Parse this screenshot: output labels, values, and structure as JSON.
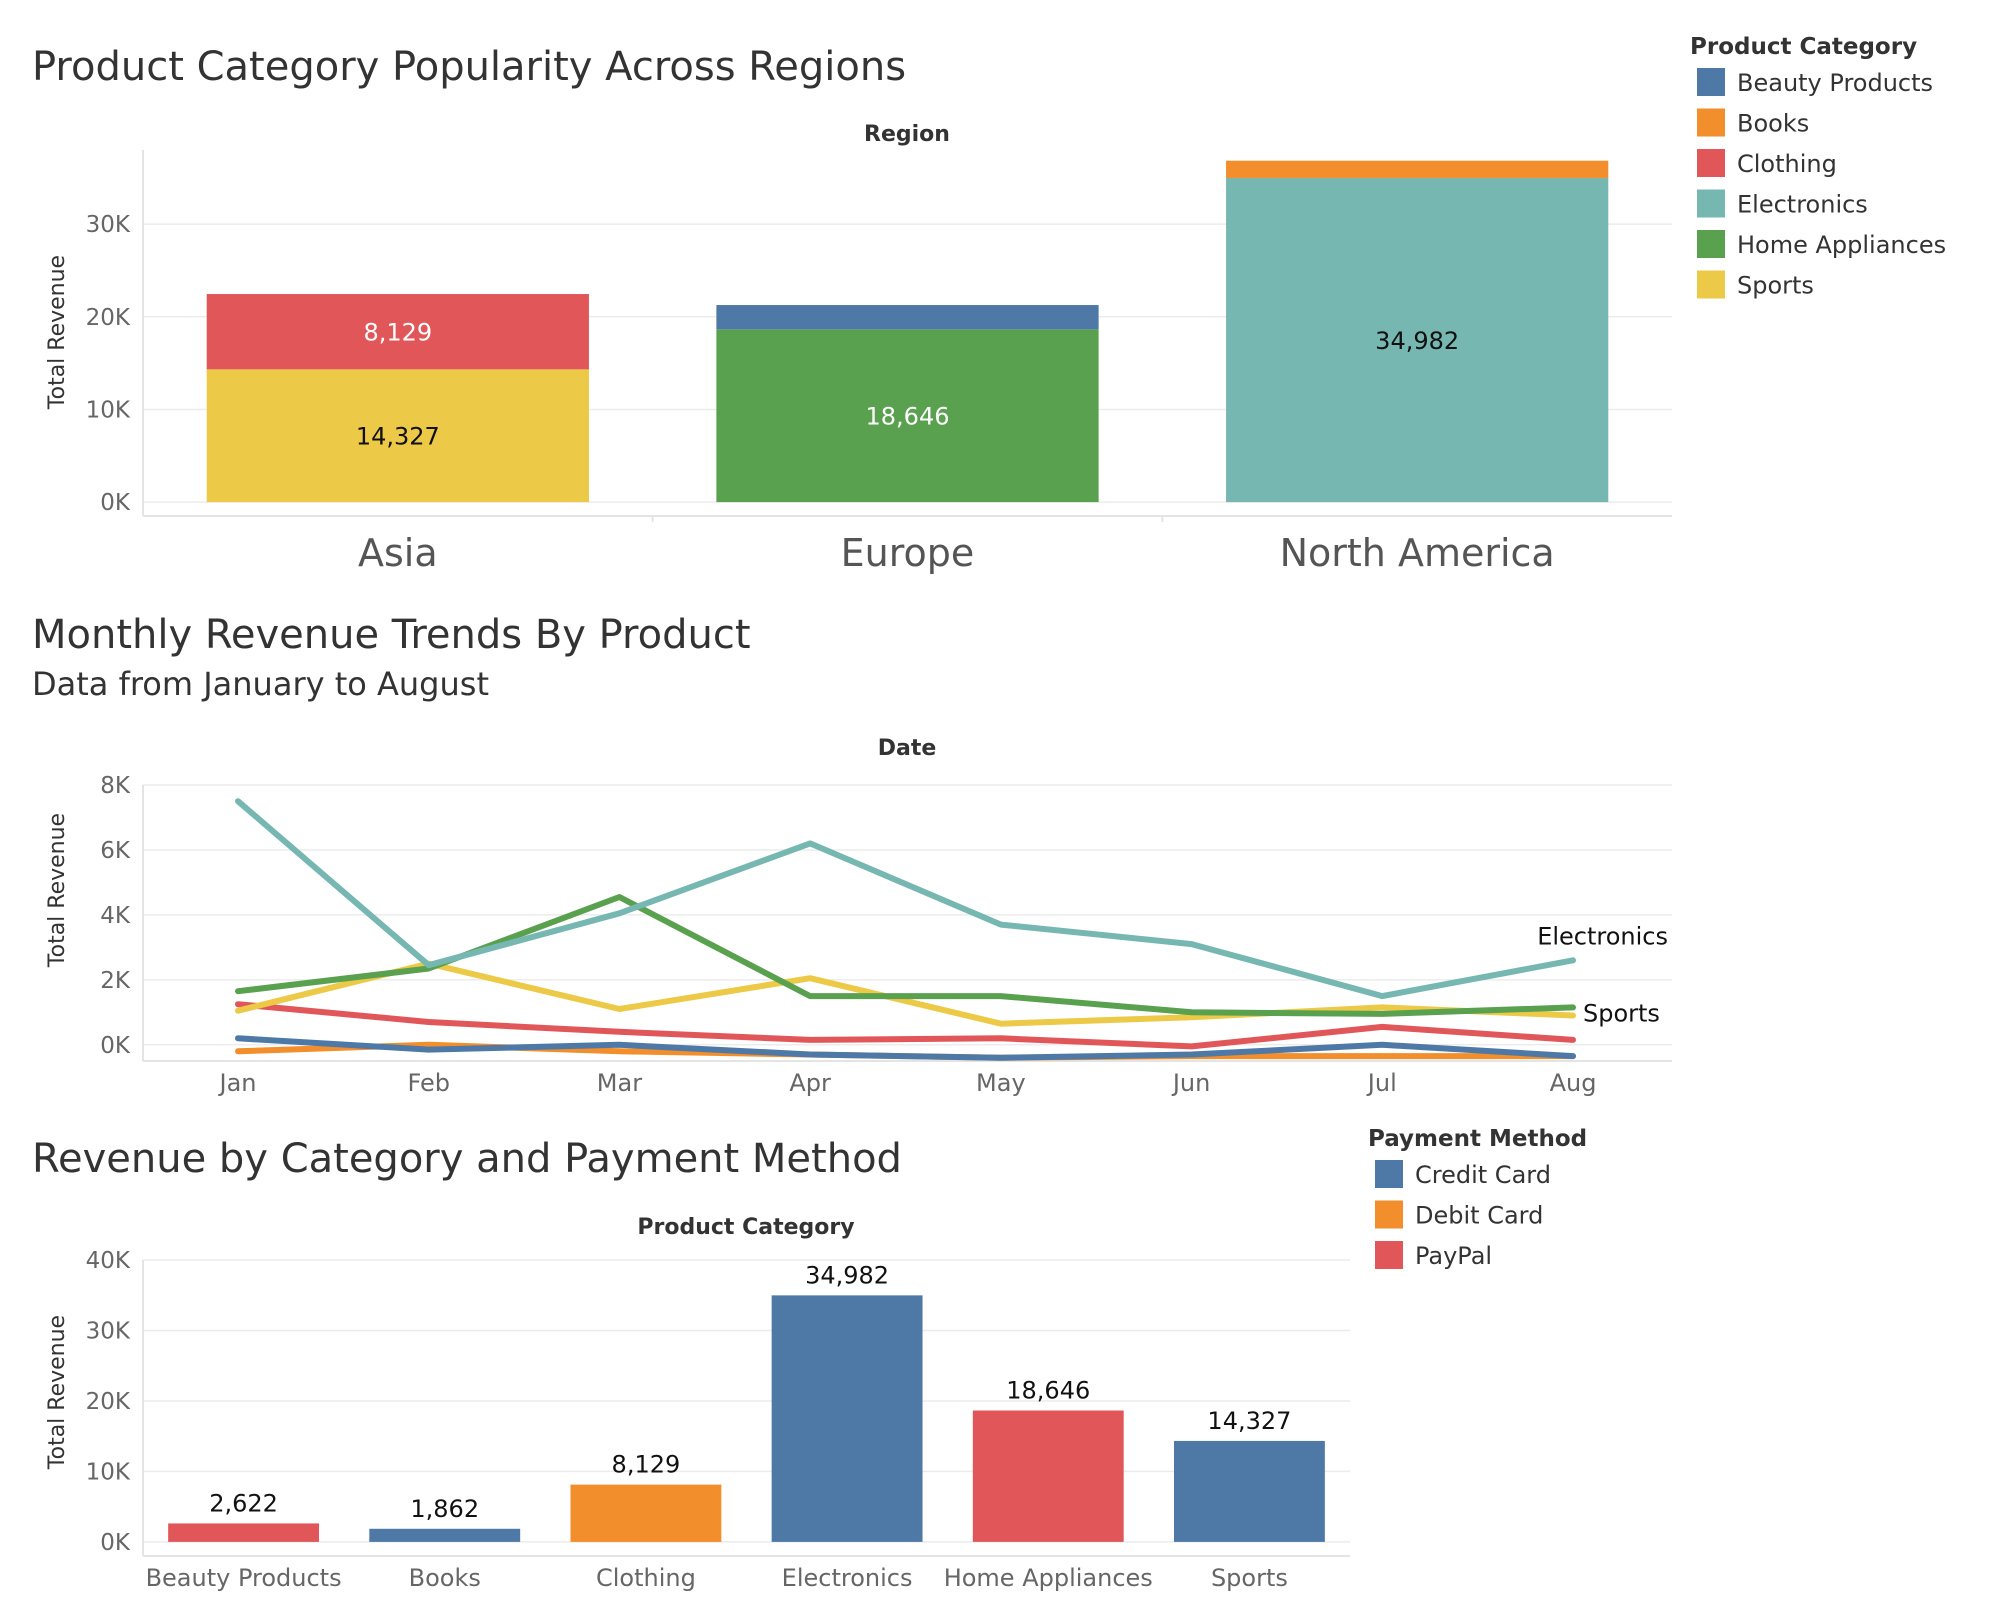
{
  "colors": {
    "Beauty Products": "#4e79a7",
    "Books": "#f28e2b",
    "Clothing": "#e15759",
    "Electronics": "#76b7b2",
    "Home Appliances": "#59a14f",
    "Sports": "#edc948",
    "Credit Card": "#4e79a7",
    "Debit Card": "#f28e2b",
    "PayPal": "#e15759"
  },
  "chart_data": [
    {
      "id": "region",
      "type": "bar",
      "stacked": true,
      "title": "Product Category Popularity Across Regions",
      "header": "Region",
      "ylabel": "Total Revenue",
      "ylim": [
        -1500,
        38000
      ],
      "yticks": [
        0,
        10000,
        20000,
        30000
      ],
      "ytick_labels": [
        "0K",
        "10K",
        "20K",
        "30K"
      ],
      "categories": [
        "Asia",
        "Europe",
        "North America"
      ],
      "series": [
        {
          "name": "Sports",
          "values": [
            14327,
            0,
            0
          ]
        },
        {
          "name": "Clothing",
          "values": [
            8129,
            0,
            0
          ]
        },
        {
          "name": "Home Appliances",
          "values": [
            0,
            18646,
            0
          ]
        },
        {
          "name": "Beauty Products",
          "values": [
            0,
            2622,
            0
          ]
        },
        {
          "name": "Electronics",
          "values": [
            0,
            0,
            34982
          ]
        },
        {
          "name": "Books",
          "values": [
            0,
            0,
            1862
          ]
        }
      ],
      "labels": [
        {
          "category": "Asia",
          "series": "Sports",
          "text": "14,327"
        },
        {
          "category": "Asia",
          "series": "Clothing",
          "text": "8,129"
        },
        {
          "category": "Europe",
          "series": "Home Appliances",
          "text": "18,646"
        },
        {
          "category": "North America",
          "series": "Electronics",
          "text": "34,982"
        }
      ],
      "legend": {
        "title": "Product Category",
        "position": "top-right",
        "items": [
          "Beauty Products",
          "Books",
          "Clothing",
          "Electronics",
          "Home Appliances",
          "Sports"
        ]
      }
    },
    {
      "id": "monthly",
      "type": "line",
      "title": "Monthly Revenue Trends By Product",
      "subtitle": "Data from January to August",
      "header": "Date",
      "ylabel": "Total Revenue",
      "ylim": [
        -500,
        8000
      ],
      "yticks": [
        0,
        2000,
        4000,
        6000,
        8000
      ],
      "ytick_labels": [
        "0K",
        "2K",
        "4K",
        "6K",
        "8K"
      ],
      "x": [
        "Jan",
        "Feb",
        "Mar",
        "Apr",
        "May",
        "Jun",
        "Jul",
        "Aug"
      ],
      "series": [
        {
          "name": "Books",
          "values": [
            -200,
            0,
            -200,
            -300,
            -400,
            -350,
            -350,
            -350
          ]
        },
        {
          "name": "Beauty Products",
          "values": [
            200,
            -150,
            0,
            -300,
            -400,
            -300,
            0,
            -350
          ]
        },
        {
          "name": "Clothing",
          "values": [
            1250,
            700,
            400,
            150,
            200,
            -50,
            550,
            150
          ]
        },
        {
          "name": "Sports",
          "values": [
            1050,
            2500,
            1100,
            2050,
            650,
            850,
            1150,
            900
          ]
        },
        {
          "name": "Home Appliances",
          "values": [
            1650,
            2350,
            4550,
            1500,
            1500,
            1000,
            950,
            1150
          ]
        },
        {
          "name": "Electronics",
          "values": [
            7500,
            2450,
            4050,
            6200,
            3700,
            3100,
            1500,
            2600
          ]
        }
      ],
      "end_labels": [
        "Electronics",
        "Sports"
      ]
    },
    {
      "id": "payment",
      "type": "bar",
      "title": "Revenue by Category and Payment Method",
      "header": "Product Category",
      "ylabel": "Total Revenue",
      "ylim": [
        -2000,
        40000
      ],
      "yticks": [
        0,
        10000,
        20000,
        30000,
        40000
      ],
      "ytick_labels": [
        "0K",
        "10K",
        "20K",
        "30K",
        "40K"
      ],
      "categories": [
        "Beauty Products",
        "Books",
        "Clothing",
        "Electronics",
        "Home Appliances",
        "Sports"
      ],
      "values": [
        2622,
        1862,
        8129,
        34982,
        18646,
        14327
      ],
      "value_labels": [
        "2,622",
        "1,862",
        "8,129",
        "34,982",
        "18,646",
        "14,327"
      ],
      "payment_methods": [
        "PayPal",
        "Credit Card",
        "Debit Card",
        "Credit Card",
        "PayPal",
        "Credit Card"
      ],
      "legend": {
        "title": "Payment Method",
        "position": "right",
        "items": [
          "Credit Card",
          "Debit Card",
          "PayPal"
        ]
      }
    }
  ]
}
